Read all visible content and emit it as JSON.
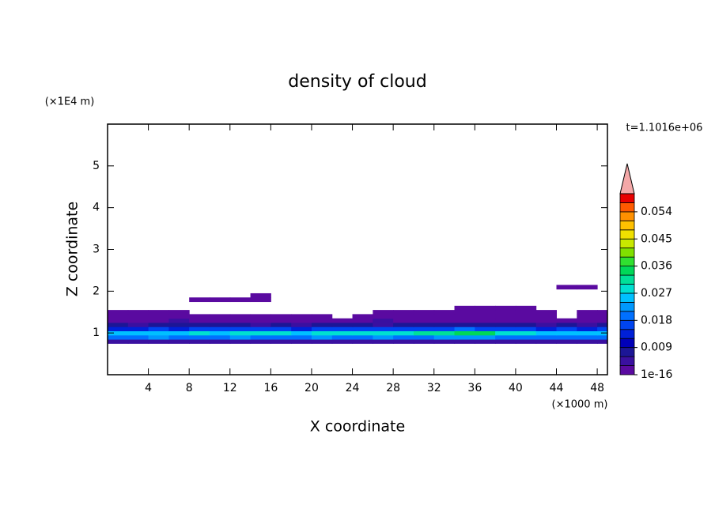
{
  "chart_data": {
    "type": "contour",
    "title": "density of cloud",
    "x_label": "X coordinate",
    "y_label": "Z coordinate",
    "x_unit": "(×1000 m)",
    "y_unit": "(×1E4 m)",
    "annotation": "t=1.1016e+06",
    "xlim": [
      0,
      49
    ],
    "ylim": [
      0,
      6
    ],
    "xticks": [
      4,
      8,
      12,
      16,
      20,
      24,
      28,
      32,
      36,
      40,
      44,
      48
    ],
    "yticks": [
      1,
      2,
      3,
      4,
      5
    ],
    "x": [
      1,
      3,
      5,
      7,
      9,
      11,
      13,
      15,
      17,
      19,
      21,
      23,
      25,
      27,
      29,
      31,
      33,
      35,
      37,
      39,
      41,
      43,
      45,
      47,
      49
    ],
    "y": [
      0.8,
      0.9,
      1.0,
      1.1,
      1.2,
      1.3,
      1.4,
      1.5,
      1.6,
      1.7,
      1.8,
      1.9,
      2.0,
      2.1
    ],
    "z": [
      [
        0.006,
        0.006,
        0.006,
        0.006,
        0.006,
        0.006,
        0.006,
        0.006,
        0.006,
        0.006,
        0.006,
        0.006,
        0.006,
        0.006,
        0.006,
        0.006,
        0.006,
        0.006,
        0.006,
        0.006,
        0.006,
        0.006,
        0.006,
        0.006,
        0.006
      ],
      [
        0.021,
        0.02,
        0.022,
        0.02,
        0.021,
        0.02,
        0.022,
        0.021,
        0.02,
        0.021,
        0.022,
        0.02,
        0.021,
        0.022,
        0.021,
        0.02,
        0.022,
        0.023,
        0.022,
        0.021,
        0.02,
        0.021,
        0.02,
        0.021,
        0.02
      ],
      [
        0.026,
        0.025,
        0.027,
        0.026,
        0.028,
        0.027,
        0.03,
        0.029,
        0.028,
        0.027,
        0.028,
        0.029,
        0.028,
        0.029,
        0.03,
        0.031,
        0.033,
        0.035,
        0.034,
        0.03,
        0.028,
        0.027,
        0.026,
        0.027,
        0.026
      ],
      [
        0.015,
        0.014,
        0.016,
        0.015,
        0.017,
        0.016,
        0.018,
        0.017,
        0.016,
        0.015,
        0.016,
        0.017,
        0.016,
        0.017,
        0.016,
        0.017,
        0.018,
        0.019,
        0.018,
        0.017,
        0.016,
        0.015,
        0.016,
        0.015,
        0.016
      ],
      [
        0.007,
        0.006,
        0.008,
        0.007,
        0.009,
        0.008,
        0.007,
        0.006,
        0.007,
        0.006,
        0.007,
        0.008,
        0.007,
        0.006,
        0.007,
        0.008,
        0.009,
        0.008,
        0.009,
        0.008,
        0.007,
        0.006,
        0.007,
        0.006,
        0.007
      ],
      [
        0.002,
        0.003,
        0.002,
        0.004,
        0.003,
        0.002,
        0.003,
        0.002,
        0.002,
        0.003,
        0.002,
        0.002,
        0.003,
        0.004,
        0.003,
        0.002,
        0.003,
        0.002,
        0.003,
        0.002,
        0.003,
        0.002,
        0.002,
        0.003,
        0.002
      ],
      [
        0.001,
        0.001,
        0.002,
        0.001,
        0.002,
        0.001,
        0.001,
        0.002,
        0.001,
        0.001,
        0.001,
        0,
        0.001,
        0.001,
        0.001,
        0.001,
        0.001,
        0.001,
        0.002,
        0.001,
        0.001,
        0.001,
        0,
        0.001,
        0.002
      ],
      [
        0.001,
        0.001,
        0.001,
        0.001,
        0,
        0,
        0,
        0,
        0,
        0,
        0,
        0,
        0,
        0.001,
        0.001,
        0.001,
        0.001,
        0.001,
        0.001,
        0.001,
        0.001,
        0.001,
        0,
        0.001,
        0.001
      ],
      [
        0,
        0,
        0,
        0,
        0,
        0,
        0,
        0,
        0,
        0,
        0,
        0,
        0,
        0,
        0,
        0,
        0,
        0.001,
        0.001,
        0.001,
        0.001,
        0,
        0,
        0,
        0
      ],
      [
        0,
        0,
        0,
        0,
        0,
        0,
        0,
        0,
        0,
        0,
        0,
        0,
        0,
        0,
        0,
        0,
        0,
        0,
        0,
        0,
        0,
        0,
        0,
        0,
        0
      ],
      [
        0,
        0,
        0,
        0,
        0.001,
        0.001,
        0.001,
        0.001,
        0,
        0,
        0,
        0,
        0,
        0,
        0,
        0,
        0,
        0,
        0,
        0,
        0,
        0,
        0,
        0,
        0
      ],
      [
        0,
        0,
        0,
        0,
        0,
        0,
        0,
        0.001,
        0,
        0,
        0,
        0,
        0,
        0,
        0,
        0,
        0,
        0,
        0,
        0,
        0,
        0,
        0,
        0,
        0
      ],
      [
        0,
        0,
        0,
        0,
        0,
        0,
        0,
        0,
        0,
        0,
        0,
        0,
        0,
        0,
        0,
        0,
        0,
        0,
        0,
        0,
        0,
        0,
        0,
        0,
        0
      ],
      [
        0,
        0,
        0,
        0,
        0,
        0,
        0,
        0,
        0,
        0,
        0,
        0,
        0,
        0,
        0,
        0,
        0,
        0,
        0,
        0,
        0,
        0,
        0.001,
        0.001,
        0
      ]
    ],
    "clim": [
      1e-16,
      0.06
    ],
    "cticks": [
      1e-16,
      0.009,
      0.018,
      0.027,
      0.036,
      0.045,
      0.054
    ],
    "colors": [
      "#5a0aa0",
      "#3a10a0",
      "#1c1696",
      "#0000b8",
      "#0020d8",
      "#0044f0",
      "#0070ff",
      "#0098ff",
      "#00c0ff",
      "#00e0d0",
      "#00e098",
      "#00d858",
      "#30e030",
      "#80e000",
      "#c8e800",
      "#f0e000",
      "#ffc000",
      "#ff9000",
      "#ff5a00",
      "#e80000"
    ],
    "extend_color": "#f4a8a8"
  }
}
